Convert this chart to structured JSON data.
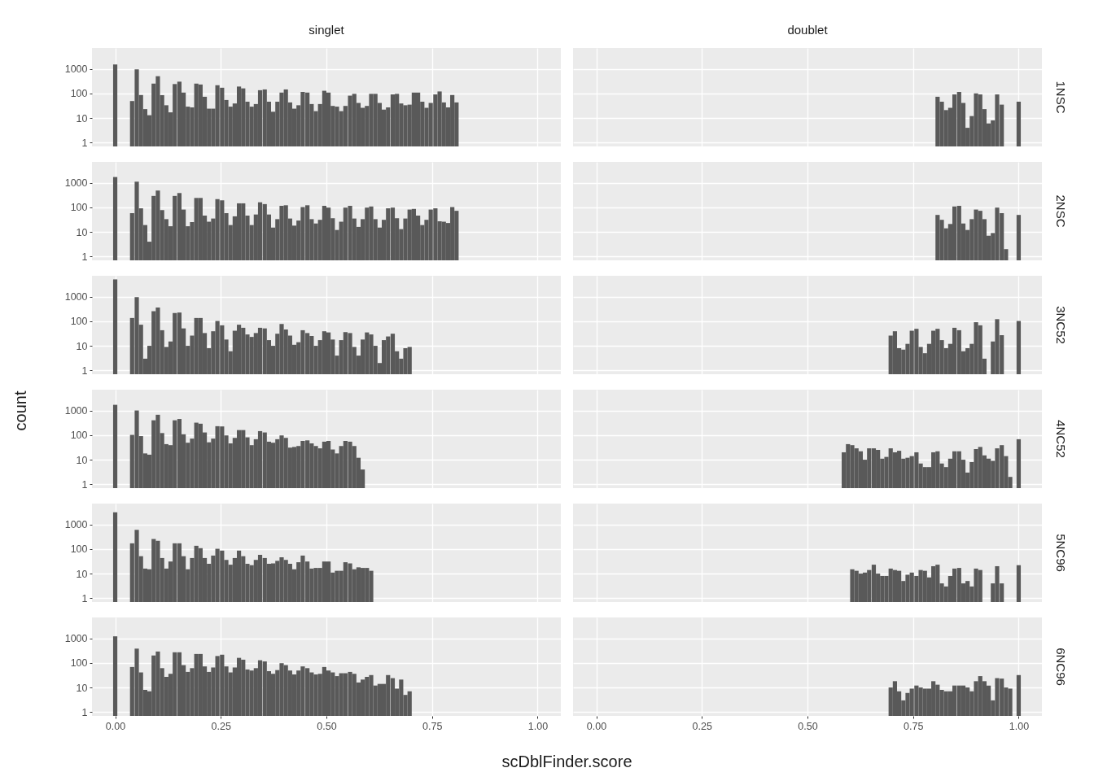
{
  "chart_data": [
    {
      "type": "bar",
      "title": "singlet",
      "color": "#595959",
      "log": true,
      "grid": true,
      "tick_labels": "y",
      "xlim": [
        -0.055,
        1.055
      ],
      "ylim": [
        0.7,
        7000
      ],
      "xticks": [
        0,
        0.25,
        0.5,
        0.75,
        1
      ],
      "yticks": [
        1,
        10,
        100,
        1000
      ],
      "x": [
        0,
        0.04,
        0.051,
        0.061,
        0.071,
        0.081,
        0.091,
        0.101,
        0.111,
        0.121,
        0.131,
        0.141,
        0.152,
        0.162,
        0.172,
        0.182,
        0.192,
        0.202,
        0.212,
        0.222,
        0.232,
        0.242,
        0.253,
        0.263,
        0.273,
        0.283,
        0.293,
        0.303,
        0.313,
        0.323,
        0.333,
        0.343,
        0.354,
        0.364,
        0.374,
        0.384,
        0.394,
        0.404,
        0.414,
        0.424,
        0.434,
        0.444,
        0.455,
        0.465,
        0.475,
        0.485,
        0.495,
        0.505,
        0.515,
        0.525,
        0.535,
        0.545,
        0.556,
        0.566,
        0.576,
        0.586,
        0.596,
        0.606,
        0.616,
        0.626,
        0.636,
        0.646,
        0.657,
        0.667,
        0.677,
        0.687,
        0.697,
        0.707,
        0.717,
        0.727,
        0.737,
        0.747,
        0.758,
        0.768,
        0.778,
        0.788,
        0.798,
        0.808
      ],
      "values": [
        1500,
        49,
        950,
        86,
        23,
        13,
        250,
        500,
        85,
        33,
        17,
        240,
        300,
        108,
        29,
        27,
        250,
        230,
        73,
        24,
        24,
        215,
        170,
        54,
        29,
        39,
        190,
        160,
        46,
        29,
        37,
        135,
        145,
        46,
        18,
        46,
        108,
        145,
        43,
        24,
        33,
        115,
        108,
        37,
        19,
        37,
        128,
        108,
        31,
        29,
        19,
        31,
        81,
        96,
        41,
        26,
        31,
        96,
        96,
        41,
        22,
        27,
        91,
        96,
        39,
        33,
        35,
        108,
        108,
        46,
        26,
        41,
        91,
        120,
        43,
        27,
        86,
        43
      ]
    },
    {
      "type": "bar",
      "title": "doublet",
      "y2label": "1NSC",
      "color": "#595959",
      "log": true,
      "grid": true,
      "tick_labels": false,
      "xlim": [
        -0.055,
        1.055
      ],
      "ylim": [
        0.7,
        7000
      ],
      "xticks": [
        0,
        0.25,
        0.5,
        0.75,
        1
      ],
      "yticks": [
        1,
        10,
        100,
        1000
      ],
      "x": [
        0.808,
        0.818,
        0.828,
        0.838,
        0.848,
        0.859,
        0.869,
        0.879,
        0.889,
        0.899,
        0.909,
        0.919,
        0.929,
        0.939,
        0.949,
        0.96,
        1
      ],
      "values": [
        73,
        46,
        21,
        26,
        91,
        115,
        41,
        4,
        12,
        100,
        91,
        23,
        6,
        8,
        91,
        35,
        46
      ]
    },
    {
      "type": "bar",
      "color": "#595959",
      "log": true,
      "grid": true,
      "tick_labels": "y",
      "xlim": [
        -0.055,
        1.055
      ],
      "ylim": [
        0.7,
        7000
      ],
      "xticks": [
        0,
        0.25,
        0.5,
        0.75,
        1
      ],
      "yticks": [
        1,
        10,
        100,
        1000
      ],
      "x": [
        0,
        0.04,
        0.051,
        0.061,
        0.071,
        0.081,
        0.091,
        0.101,
        0.111,
        0.121,
        0.131,
        0.141,
        0.152,
        0.162,
        0.172,
        0.182,
        0.192,
        0.202,
        0.212,
        0.222,
        0.232,
        0.242,
        0.253,
        0.263,
        0.273,
        0.283,
        0.293,
        0.303,
        0.313,
        0.323,
        0.333,
        0.343,
        0.354,
        0.364,
        0.374,
        0.384,
        0.394,
        0.404,
        0.414,
        0.424,
        0.434,
        0.444,
        0.455,
        0.465,
        0.475,
        0.485,
        0.495,
        0.505,
        0.515,
        0.525,
        0.535,
        0.545,
        0.556,
        0.566,
        0.576,
        0.586,
        0.596,
        0.606,
        0.616,
        0.626,
        0.636,
        0.646,
        0.657,
        0.667,
        0.677,
        0.687,
        0.697,
        0.707,
        0.717,
        0.727,
        0.737,
        0.747,
        0.758,
        0.768,
        0.778,
        0.788,
        0.798,
        0.808
      ],
      "values": [
        1700,
        58,
        1100,
        91,
        19,
        4,
        290,
        480,
        77,
        33,
        17,
        290,
        380,
        81,
        17,
        25,
        240,
        240,
        46,
        26,
        35,
        215,
        192,
        58,
        19,
        43,
        145,
        145,
        46,
        19,
        51,
        160,
        135,
        51,
        15,
        33,
        115,
        121,
        35,
        18,
        29,
        102,
        121,
        33,
        22,
        31,
        115,
        97,
        36,
        12,
        26,
        97,
        115,
        35,
        16,
        33,
        97,
        108,
        33,
        15,
        31,
        91,
        97,
        36,
        13,
        35,
        81,
        86,
        46,
        19,
        31,
        81,
        91,
        27,
        26,
        23,
        102,
        72
      ]
    },
    {
      "type": "bar",
      "y2label": "2NSC",
      "color": "#595959",
      "log": true,
      "grid": true,
      "tick_labels": false,
      "xlim": [
        -0.055,
        1.055
      ],
      "ylim": [
        0.7,
        7000
      ],
      "xticks": [
        0,
        0.25,
        0.5,
        0.75,
        1
      ],
      "yticks": [
        1,
        10,
        100,
        1000
      ],
      "x": [
        0.808,
        0.818,
        0.828,
        0.838,
        0.848,
        0.859,
        0.869,
        0.879,
        0.889,
        0.899,
        0.909,
        0.919,
        0.929,
        0.939,
        0.949,
        0.96,
        0.97,
        1
      ],
      "values": [
        49,
        31,
        14,
        21,
        108,
        115,
        22,
        12,
        33,
        81,
        72,
        33,
        7,
        9,
        97,
        58,
        2,
        49
      ]
    },
    {
      "type": "bar",
      "color": "#595959",
      "log": true,
      "grid": true,
      "tick_labels": "y",
      "xlim": [
        -0.055,
        1.055
      ],
      "ylim": [
        0.7,
        7000
      ],
      "xticks": [
        0,
        0.25,
        0.5,
        0.75,
        1
      ],
      "yticks": [
        1,
        10,
        100,
        1000
      ],
      "x": [
        0,
        0.04,
        0.051,
        0.061,
        0.071,
        0.081,
        0.091,
        0.101,
        0.111,
        0.121,
        0.131,
        0.141,
        0.152,
        0.162,
        0.172,
        0.182,
        0.192,
        0.202,
        0.212,
        0.222,
        0.232,
        0.242,
        0.253,
        0.263,
        0.273,
        0.283,
        0.293,
        0.303,
        0.313,
        0.323,
        0.333,
        0.343,
        0.354,
        0.364,
        0.374,
        0.384,
        0.394,
        0.404,
        0.414,
        0.424,
        0.434,
        0.444,
        0.455,
        0.465,
        0.475,
        0.485,
        0.495,
        0.505,
        0.515,
        0.525,
        0.535,
        0.545,
        0.556,
        0.566,
        0.576,
        0.586,
        0.596,
        0.606,
        0.616,
        0.626,
        0.636,
        0.646,
        0.657,
        0.667,
        0.677,
        0.687,
        0.697
      ],
      "values": [
        5000,
        135,
        950,
        72,
        3,
        10,
        255,
        360,
        43,
        9,
        15,
        215,
        225,
        51,
        10,
        26,
        135,
        135,
        33,
        8,
        39,
        102,
        68,
        18,
        6,
        41,
        72,
        54,
        29,
        23,
        33,
        54,
        51,
        17,
        10,
        31,
        77,
        46,
        26,
        11,
        14,
        43,
        33,
        25,
        10,
        17,
        39,
        35,
        18,
        4,
        17,
        36,
        33,
        9,
        4,
        18,
        35,
        29,
        10,
        2,
        17,
        24,
        31,
        6,
        3,
        8,
        9
      ]
    },
    {
      "type": "bar",
      "y2label": "3NC52",
      "color": "#595959",
      "log": true,
      "grid": true,
      "tick_labels": false,
      "xlim": [
        -0.055,
        1.055
      ],
      "ylim": [
        0.7,
        7000
      ],
      "xticks": [
        0,
        0.25,
        0.5,
        0.75,
        1
      ],
      "yticks": [
        1,
        10,
        100,
        1000
      ],
      "x": [
        0.697,
        0.707,
        0.717,
        0.727,
        0.737,
        0.747,
        0.758,
        0.768,
        0.778,
        0.788,
        0.798,
        0.808,
        0.818,
        0.828,
        0.838,
        0.848,
        0.859,
        0.869,
        0.879,
        0.889,
        0.899,
        0.909,
        0.919,
        0.939,
        0.949,
        0.96,
        1
      ],
      "values": [
        26,
        39,
        8,
        7,
        12,
        41,
        49,
        9,
        5,
        12,
        41,
        49,
        17,
        8,
        12,
        54,
        43,
        6,
        8,
        12,
        91,
        68,
        3,
        15,
        121,
        27,
        102
      ]
    },
    {
      "type": "bar",
      "ylabel": "count",
      "color": "#595959",
      "log": true,
      "grid": true,
      "tick_labels": "y",
      "xlim": [
        -0.055,
        1.055
      ],
      "ylim": [
        0.7,
        7000
      ],
      "xticks": [
        0,
        0.25,
        0.5,
        0.75,
        1
      ],
      "yticks": [
        1,
        10,
        100,
        1000
      ],
      "x": [
        0,
        0.04,
        0.051,
        0.061,
        0.071,
        0.081,
        0.091,
        0.101,
        0.111,
        0.121,
        0.131,
        0.141,
        0.152,
        0.162,
        0.172,
        0.182,
        0.192,
        0.202,
        0.212,
        0.222,
        0.232,
        0.242,
        0.253,
        0.263,
        0.273,
        0.283,
        0.293,
        0.303,
        0.313,
        0.323,
        0.333,
        0.343,
        0.354,
        0.364,
        0.374,
        0.384,
        0.394,
        0.404,
        0.414,
        0.424,
        0.434,
        0.444,
        0.455,
        0.465,
        0.475,
        0.485,
        0.495,
        0.505,
        0.515,
        0.525,
        0.535,
        0.545,
        0.556,
        0.566,
        0.576,
        0.586
      ],
      "values": [
        1700,
        102,
        1000,
        91,
        18,
        16,
        400,
        670,
        121,
        43,
        39,
        400,
        450,
        108,
        49,
        72,
        320,
        290,
        128,
        51,
        72,
        230,
        225,
        97,
        46,
        77,
        160,
        160,
        81,
        39,
        68,
        145,
        128,
        54,
        49,
        68,
        97,
        77,
        31,
        33,
        36,
        58,
        61,
        46,
        36,
        29,
        54,
        58,
        26,
        18,
        36,
        58,
        54,
        36,
        12,
        4
      ]
    },
    {
      "type": "bar",
      "y2label": "4NC52",
      "color": "#595959",
      "log": true,
      "grid": true,
      "tick_labels": false,
      "xlim": [
        -0.055,
        1.055
      ],
      "ylim": [
        0.7,
        7000
      ],
      "xticks": [
        0,
        0.25,
        0.5,
        0.75,
        1
      ],
      "yticks": [
        1,
        10,
        100,
        1000
      ],
      "x": [
        0.586,
        0.596,
        0.606,
        0.616,
        0.626,
        0.636,
        0.646,
        0.657,
        0.667,
        0.677,
        0.687,
        0.697,
        0.707,
        0.717,
        0.727,
        0.737,
        0.747,
        0.758,
        0.768,
        0.778,
        0.788,
        0.798,
        0.808,
        0.818,
        0.828,
        0.838,
        0.848,
        0.859,
        0.869,
        0.879,
        0.889,
        0.899,
        0.909,
        0.919,
        0.929,
        0.939,
        0.949,
        0.96,
        0.97,
        0.98,
        1
      ],
      "values": [
        20,
        43,
        39,
        29,
        22,
        10,
        29,
        29,
        25,
        11,
        13,
        29,
        20,
        23,
        11,
        12,
        14,
        20,
        7,
        5,
        5,
        20,
        22,
        7,
        5,
        11,
        22,
        22,
        10,
        3,
        8,
        27,
        33,
        15,
        11,
        9,
        29,
        39,
        14,
        2,
        68
      ]
    },
    {
      "type": "bar",
      "color": "#595959",
      "log": true,
      "grid": true,
      "tick_labels": "y",
      "xlim": [
        -0.055,
        1.055
      ],
      "ylim": [
        0.7,
        7000
      ],
      "xticks": [
        0,
        0.25,
        0.5,
        0.75,
        1
      ],
      "yticks": [
        1,
        10,
        100,
        1000
      ],
      "x": [
        0,
        0.04,
        0.051,
        0.061,
        0.071,
        0.081,
        0.091,
        0.101,
        0.111,
        0.121,
        0.131,
        0.141,
        0.152,
        0.162,
        0.172,
        0.182,
        0.192,
        0.202,
        0.212,
        0.222,
        0.232,
        0.242,
        0.253,
        0.263,
        0.273,
        0.283,
        0.293,
        0.303,
        0.313,
        0.323,
        0.333,
        0.343,
        0.354,
        0.364,
        0.374,
        0.384,
        0.394,
        0.404,
        0.414,
        0.424,
        0.434,
        0.444,
        0.455,
        0.465,
        0.475,
        0.485,
        0.495,
        0.505,
        0.515,
        0.525,
        0.535,
        0.545,
        0.556,
        0.566,
        0.576,
        0.586,
        0.596,
        0.606
      ],
      "values": [
        3100,
        170,
        600,
        51,
        16,
        15,
        255,
        215,
        43,
        16,
        31,
        170,
        170,
        51,
        15,
        43,
        135,
        108,
        43,
        25,
        54,
        102,
        86,
        36,
        23,
        43,
        86,
        51,
        25,
        22,
        36,
        58,
        43,
        25,
        26,
        33,
        46,
        36,
        25,
        15,
        29,
        54,
        31,
        16,
        17,
        17,
        31,
        31,
        11,
        13,
        13,
        29,
        26,
        15,
        18,
        17,
        17,
        13
      ]
    },
    {
      "type": "bar",
      "y2label": "5NC96",
      "color": "#595959",
      "log": true,
      "grid": true,
      "tick_labels": false,
      "xlim": [
        -0.055,
        1.055
      ],
      "ylim": [
        0.7,
        7000
      ],
      "xticks": [
        0,
        0.25,
        0.5,
        0.75,
        1
      ],
      "yticks": [
        1,
        10,
        100,
        1000
      ],
      "x": [
        0.606,
        0.616,
        0.626,
        0.636,
        0.646,
        0.657,
        0.667,
        0.677,
        0.687,
        0.697,
        0.707,
        0.717,
        0.727,
        0.737,
        0.747,
        0.758,
        0.768,
        0.778,
        0.788,
        0.798,
        0.808,
        0.818,
        0.828,
        0.838,
        0.848,
        0.859,
        0.869,
        0.879,
        0.889,
        0.899,
        0.909,
        0.939,
        0.949,
        0.96,
        1
      ],
      "values": [
        15,
        13,
        10,
        11,
        14,
        23,
        10,
        8,
        8,
        16,
        14,
        13,
        5,
        9,
        11,
        8,
        14,
        13,
        7,
        20,
        23,
        4,
        3,
        8,
        16,
        17,
        4,
        5,
        3,
        16,
        14,
        4,
        20,
        4,
        22
      ]
    },
    {
      "type": "bar",
      "xlabel": "scDblFinder.score",
      "color": "#595959",
      "log": true,
      "grid": true,
      "xlim": [
        -0.055,
        1.055
      ],
      "ylim": [
        0.7,
        7000
      ],
      "xticks": [
        {
          "value": 0,
          "label": "0.00"
        },
        {
          "value": 0.25,
          "label": "0.25"
        },
        {
          "value": 0.5,
          "label": "0.50"
        },
        {
          "value": 0.75,
          "label": "0.75"
        },
        {
          "value": 1,
          "label": "1.00"
        }
      ],
      "yticks": [
        1,
        10,
        100,
        1000
      ],
      "x": [
        0,
        0.04,
        0.051,
        0.061,
        0.071,
        0.081,
        0.091,
        0.101,
        0.111,
        0.121,
        0.131,
        0.141,
        0.152,
        0.162,
        0.172,
        0.182,
        0.192,
        0.202,
        0.212,
        0.222,
        0.232,
        0.242,
        0.253,
        0.263,
        0.273,
        0.283,
        0.293,
        0.303,
        0.313,
        0.323,
        0.333,
        0.343,
        0.354,
        0.364,
        0.374,
        0.384,
        0.394,
        0.404,
        0.414,
        0.424,
        0.434,
        0.444,
        0.455,
        0.465,
        0.475,
        0.485,
        0.495,
        0.505,
        0.515,
        0.525,
        0.535,
        0.545,
        0.556,
        0.566,
        0.576,
        0.586,
        0.596,
        0.606,
        0.616,
        0.626,
        0.636,
        0.646,
        0.657,
        0.667,
        0.677,
        0.687,
        0.697
      ],
      "values": [
        1200,
        68,
        380,
        41,
        8,
        7,
        200,
        290,
        61,
        27,
        36,
        270,
        270,
        81,
        43,
        61,
        230,
        230,
        72,
        43,
        65,
        190,
        215,
        72,
        41,
        65,
        160,
        135,
        54,
        49,
        61,
        128,
        115,
        46,
        36,
        51,
        97,
        81,
        49,
        34,
        49,
        72,
        61,
        41,
        34,
        36,
        68,
        49,
        41,
        29,
        38,
        38,
        43,
        36,
        16,
        21,
        27,
        32,
        12,
        14,
        14,
        32,
        24,
        9,
        21,
        5,
        7
      ]
    },
    {
      "type": "bar",
      "y2label": "6NC96",
      "color": "#595959",
      "log": true,
      "grid": true,
      "tick_labels": "x",
      "xlim": [
        -0.055,
        1.055
      ],
      "ylim": [
        0.7,
        7000
      ],
      "xticks": [
        {
          "value": 0,
          "label": "0.00"
        },
        {
          "value": 0.25,
          "label": "0.25"
        },
        {
          "value": 0.5,
          "label": "0.50"
        },
        {
          "value": 0.75,
          "label": "0.75"
        },
        {
          "value": 1,
          "label": "1.00"
        }
      ],
      "yticks": [
        1,
        10,
        100,
        1000
      ],
      "x": [
        0.697,
        0.707,
        0.717,
        0.727,
        0.737,
        0.747,
        0.758,
        0.768,
        0.778,
        0.788,
        0.798,
        0.808,
        0.818,
        0.828,
        0.838,
        0.848,
        0.859,
        0.869,
        0.879,
        0.889,
        0.899,
        0.909,
        0.919,
        0.929,
        0.939,
        0.949,
        0.96,
        0.97,
        0.98,
        1
      ],
      "values": [
        10,
        18,
        7,
        3,
        6,
        9,
        12,
        10,
        9,
        9,
        18,
        13,
        8,
        7,
        7,
        12,
        12,
        12,
        10,
        7,
        18,
        29,
        18,
        12,
        3,
        24,
        23,
        10,
        9,
        32
      ]
    }
  ]
}
